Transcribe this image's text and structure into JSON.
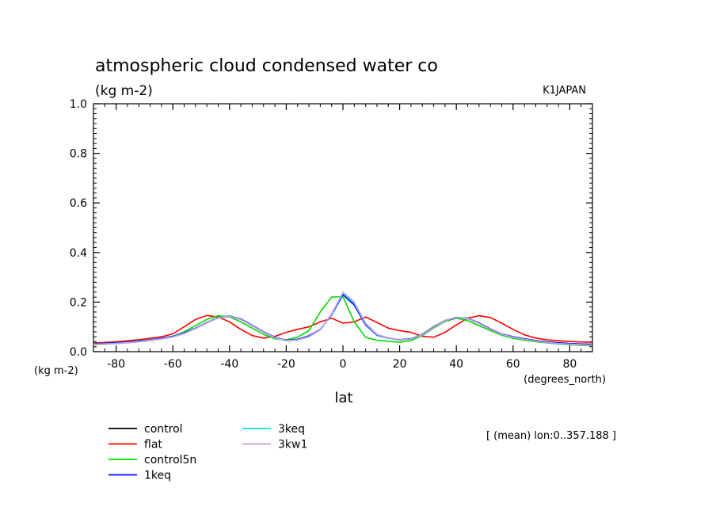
{
  "chart_data": {
    "type": "line",
    "title": "atmospheric cloud condensed water co",
    "subtitle": "(kg m-2)",
    "source_label": "K1JAPAN",
    "xlabel": "lat",
    "x_units": "(degrees_north)",
    "y_units": "(kg m-2)",
    "xlim": [
      -88,
      88
    ],
    "ylim": [
      0,
      1.0
    ],
    "x_ticks": [
      -80,
      -60,
      -40,
      -20,
      0,
      20,
      40,
      60,
      80
    ],
    "x_tick_labels": [
      "-80",
      "-60",
      "-40",
      "-20",
      "0",
      "20",
      "40",
      "60",
      "80"
    ],
    "y_ticks": [
      0,
      0.2,
      0.4,
      0.6,
      0.8,
      1.0
    ],
    "y_tick_labels": [
      "0.0",
      "0.2",
      "0.4",
      "0.6",
      "0.8",
      "1.0"
    ],
    "grid": false,
    "legend_position": "bottom-left",
    "annotation": "[ (mean) lon:0..357.188 ]",
    "x": [
      -88,
      -84,
      -80,
      -76,
      -72,
      -68,
      -64,
      -60,
      -56,
      -52,
      -48,
      -44,
      -40,
      -36,
      -32,
      -28,
      -24,
      -20,
      -16,
      -12,
      -8,
      -4,
      0,
      4,
      8,
      12,
      16,
      20,
      24,
      28,
      32,
      36,
      40,
      44,
      48,
      52,
      56,
      60,
      64,
      68,
      72,
      76,
      80,
      84,
      88
    ],
    "series": [
      {
        "name": "control",
        "color": "#000000",
        "values": [
          0.03,
          0.032,
          0.034,
          0.037,
          0.041,
          0.046,
          0.052,
          0.06,
          0.075,
          0.095,
          0.118,
          0.138,
          0.144,
          0.13,
          0.105,
          0.08,
          0.058,
          0.045,
          0.048,
          0.062,
          0.09,
          0.15,
          0.232,
          0.19,
          0.11,
          0.068,
          0.055,
          0.048,
          0.052,
          0.07,
          0.1,
          0.126,
          0.138,
          0.134,
          0.115,
          0.09,
          0.07,
          0.058,
          0.05,
          0.043,
          0.038,
          0.034,
          0.031,
          0.029,
          0.028
        ]
      },
      {
        "name": "flat",
        "color": "#ff0000",
        "values": [
          0.035,
          0.037,
          0.04,
          0.044,
          0.048,
          0.054,
          0.06,
          0.072,
          0.1,
          0.13,
          0.146,
          0.14,
          0.12,
          0.09,
          0.065,
          0.055,
          0.062,
          0.078,
          0.09,
          0.1,
          0.12,
          0.135,
          0.115,
          0.12,
          0.14,
          0.118,
          0.095,
          0.085,
          0.078,
          0.062,
          0.058,
          0.078,
          0.108,
          0.135,
          0.145,
          0.138,
          0.115,
          0.09,
          0.068,
          0.055,
          0.048,
          0.044,
          0.041,
          0.039,
          0.038
        ]
      },
      {
        "name": "control5n",
        "color": "#00dd00",
        "values": [
          0.028,
          0.03,
          0.033,
          0.036,
          0.04,
          0.045,
          0.052,
          0.062,
          0.08,
          0.105,
          0.13,
          0.145,
          0.14,
          0.12,
          0.095,
          0.07,
          0.052,
          0.048,
          0.058,
          0.085,
          0.16,
          0.22,
          0.222,
          0.12,
          0.058,
          0.046,
          0.042,
          0.038,
          0.045,
          0.065,
          0.095,
          0.122,
          0.135,
          0.125,
          0.105,
          0.085,
          0.066,
          0.054,
          0.046,
          0.04,
          0.035,
          0.031,
          0.028,
          0.026,
          0.024
        ]
      },
      {
        "name": "1keq",
        "color": "#0000ff",
        "values": [
          0.032,
          0.034,
          0.036,
          0.039,
          0.043,
          0.048,
          0.054,
          0.062,
          0.076,
          0.095,
          0.118,
          0.136,
          0.143,
          0.132,
          0.106,
          0.08,
          0.058,
          0.046,
          0.05,
          0.064,
          0.09,
          0.148,
          0.23,
          0.188,
          0.108,
          0.066,
          0.054,
          0.048,
          0.052,
          0.07,
          0.098,
          0.125,
          0.138,
          0.135,
          0.116,
          0.092,
          0.072,
          0.06,
          0.052,
          0.045,
          0.04,
          0.036,
          0.033,
          0.031,
          0.03
        ]
      },
      {
        "name": "3keq",
        "color": "#00e5ee",
        "values": [
          0.03,
          0.032,
          0.034,
          0.037,
          0.041,
          0.046,
          0.052,
          0.06,
          0.074,
          0.094,
          0.117,
          0.137,
          0.143,
          0.13,
          0.104,
          0.078,
          0.056,
          0.044,
          0.047,
          0.06,
          0.088,
          0.15,
          0.236,
          0.195,
          0.112,
          0.068,
          0.054,
          0.047,
          0.051,
          0.069,
          0.098,
          0.126,
          0.139,
          0.133,
          0.114,
          0.09,
          0.07,
          0.058,
          0.05,
          0.043,
          0.037,
          0.033,
          0.03,
          0.028,
          0.027
        ]
      },
      {
        "name": "3kw1",
        "color": "#cc99dd",
        "values": [
          0.029,
          0.031,
          0.033,
          0.036,
          0.04,
          0.045,
          0.051,
          0.059,
          0.073,
          0.093,
          0.116,
          0.136,
          0.142,
          0.13,
          0.104,
          0.079,
          0.057,
          0.045,
          0.048,
          0.061,
          0.089,
          0.152,
          0.24,
          0.2,
          0.115,
          0.07,
          0.055,
          0.047,
          0.051,
          0.068,
          0.097,
          0.125,
          0.139,
          0.134,
          0.114,
          0.09,
          0.071,
          0.058,
          0.05,
          0.043,
          0.037,
          0.033,
          0.03,
          0.028,
          0.026
        ]
      }
    ]
  }
}
